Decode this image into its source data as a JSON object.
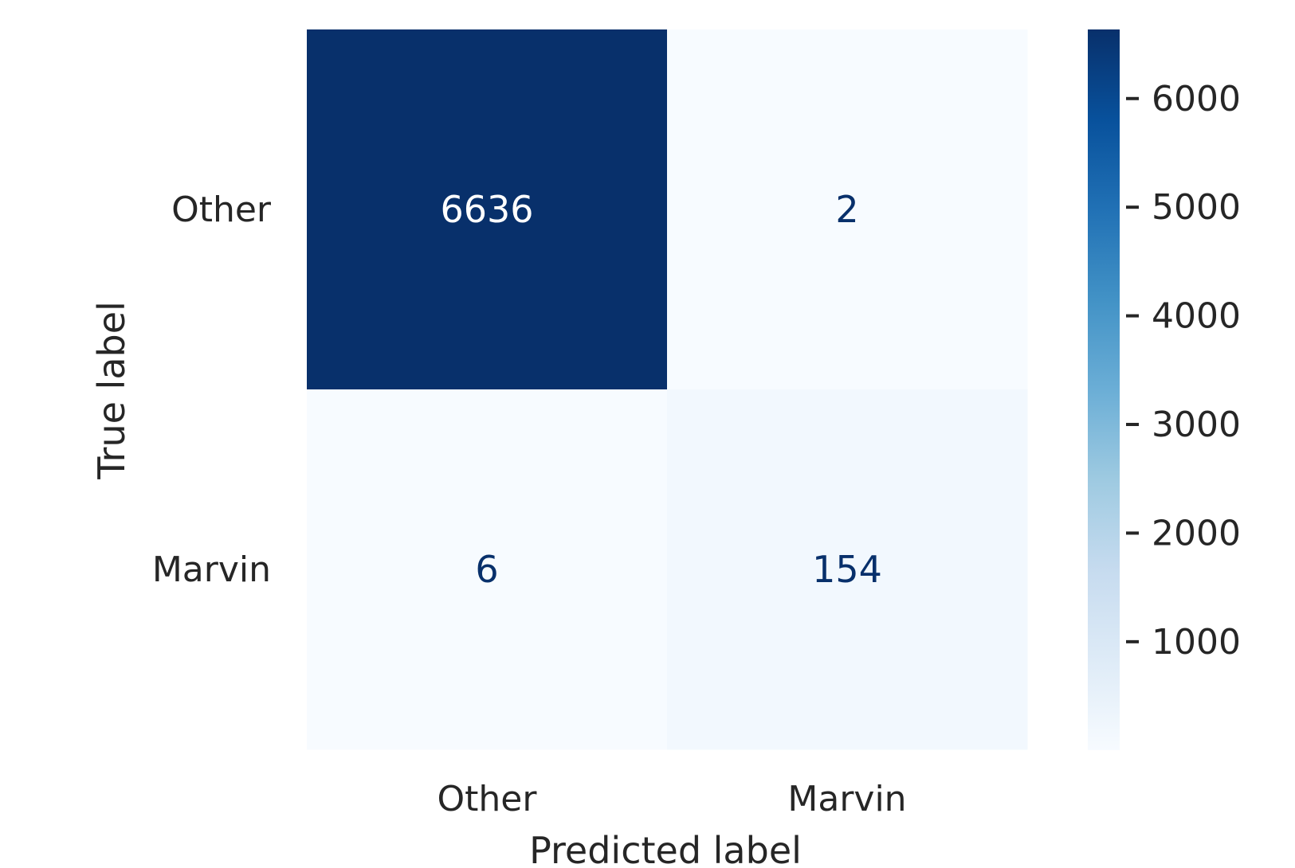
{
  "chart_data": {
    "type": "heatmap",
    "title": "",
    "xlabel": "Predicted label",
    "ylabel": "True label",
    "x_categories": [
      "Other",
      "Marvin"
    ],
    "y_categories": [
      "Other",
      "Marvin"
    ],
    "values": [
      [
        6636,
        2
      ],
      [
        6,
        154
      ]
    ],
    "colormap": "Blues",
    "colorbar": {
      "range": [
        2,
        6636
      ],
      "ticks": [
        1000,
        2000,
        3000,
        4000,
        5000,
        6000
      ],
      "tick_labels": [
        "1000",
        "2000",
        "3000",
        "4000",
        "5000",
        "6000"
      ]
    },
    "grid": false
  }
}
